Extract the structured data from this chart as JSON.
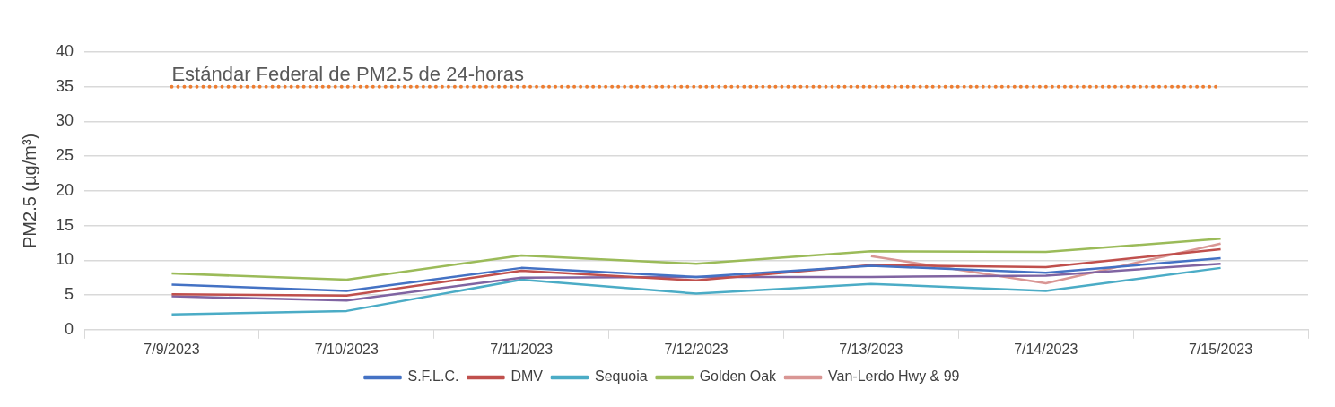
{
  "chart_data": {
    "type": "line",
    "ylabel": "PM2.5 (µg/m³)",
    "categories": [
      "7/9/2023",
      "7/10/2023",
      "7/11/2023",
      "7/12/2023",
      "7/13/2023",
      "7/14/2023",
      "7/15/2023"
    ],
    "series": [
      {
        "name": "S.F.L.C.",
        "color": "#4472c4",
        "values": [
          6.5,
          5.6,
          8.9,
          7.6,
          9.2,
          8.2,
          10.3
        ]
      },
      {
        "name": "DMV",
        "color": "#c0504d",
        "values": [
          5.1,
          4.9,
          8.5,
          7.1,
          9.3,
          9.0,
          11.6
        ]
      },
      {
        "color": "#8064a2",
        "values": [
          4.8,
          4.2,
          7.5,
          7.6,
          7.6,
          7.8,
          9.5
        ]
      },
      {
        "name": "Sequoia",
        "color": "#4bacc6",
        "values": [
          2.2,
          2.7,
          7.2,
          5.2,
          6.6,
          5.6,
          8.9
        ]
      },
      {
        "name": "Golden Oak",
        "color": "#9bbb59",
        "values": [
          8.1,
          7.2,
          10.7,
          9.5,
          11.3,
          11.2,
          13.1
        ]
      },
      {
        "name": "Van-Lerdo Hwy & 99",
        "color": "#d99694",
        "values": [
          null,
          null,
          null,
          null,
          10.6,
          6.7,
          12.4
        ]
      }
    ],
    "ylim": [
      0,
      40
    ],
    "yticks": [
      0,
      5,
      10,
      15,
      20,
      25,
      30,
      35,
      40
    ],
    "ref_lines": [
      {
        "axis": "y",
        "value": 35,
        "label": "Estándar Federal de PM2.5 de 24-horas",
        "color": "#ed7d31",
        "line_style": "dotted"
      }
    ],
    "grid": "y",
    "legend": "bottom",
    "marker": "none",
    "line_style": "solid"
  }
}
